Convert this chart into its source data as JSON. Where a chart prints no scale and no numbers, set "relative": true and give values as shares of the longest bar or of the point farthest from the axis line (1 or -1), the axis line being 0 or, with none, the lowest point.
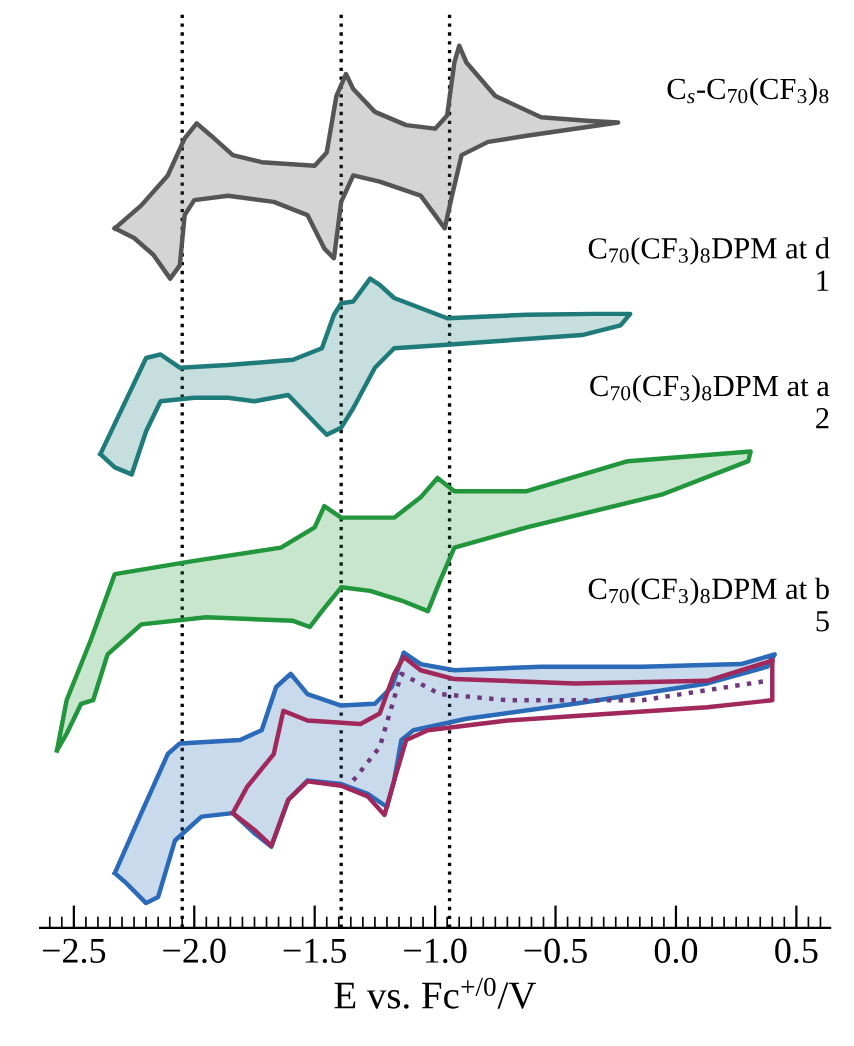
{
  "chart_data": {
    "type": "line",
    "relative": true,
    "xlabel": "E vs. Fc$^{+/0}$/V",
    "xlim": [
      -2.64,
      0.64
    ],
    "xticks": [
      {
        "value": -2.5,
        "label": "−2.5"
      },
      {
        "value": -2.0,
        "label": "−2.0"
      },
      {
        "value": -1.5,
        "label": "−1.5"
      },
      {
        "value": -1.0,
        "label": "−1.0"
      },
      {
        "value": -0.5,
        "label": "−0.5"
      },
      {
        "value": 0.0,
        "label": "0.0"
      },
      {
        "value": 0.5,
        "label": "0.5"
      }
    ],
    "tick_labels": "x",
    "grid": false,
    "legend": false,
    "ref_lines": [
      {
        "axis": "x",
        "value": -2.05,
        "color": "#000000",
        "line_style": "dotted"
      },
      {
        "axis": "x",
        "value": -1.39,
        "color": "#000000",
        "line_style": "dotted"
      },
      {
        "axis": "x",
        "value": -0.94,
        "color": "#000000",
        "line_style": "dotted"
      }
    ],
    "series": [
      {
        "name": "C$_{s}$-C$_{70}$(CF$_{3}$)$_{8}$",
        "type": "area",
        "color": "#555555",
        "x": [
          -2.33,
          -2.22,
          -2.11,
          -2.04,
          -1.99,
          -1.93,
          -1.84,
          -1.72,
          -1.5,
          -1.45,
          -1.41,
          -1.37,
          -1.34,
          -1.25,
          -1.12,
          -1.0,
          -0.95,
          -0.92,
          -0.9,
          -0.87,
          -0.75,
          -0.56,
          -0.37,
          -0.24,
          -0.39,
          -0.62,
          -0.78,
          -0.89,
          -0.93,
          -0.96,
          -1.0,
          -1.06,
          -1.23,
          -1.34,
          -1.39,
          -1.42,
          -1.46,
          -1.53,
          -1.67,
          -1.86,
          -2.0,
          -2.04,
          -2.06,
          -2.1,
          -2.17,
          -2.25,
          -2.33
        ],
        "values": [
          0.793,
          0.819,
          0.853,
          0.895,
          0.912,
          0.898,
          0.876,
          0.868,
          0.864,
          0.879,
          0.943,
          0.968,
          0.951,
          0.925,
          0.91,
          0.906,
          0.921,
          0.981,
          1.0,
          0.981,
          0.943,
          0.919,
          0.915,
          0.913,
          0.907,
          0.898,
          0.891,
          0.876,
          0.83,
          0.793,
          0.808,
          0.83,
          0.846,
          0.853,
          0.823,
          0.759,
          0.77,
          0.808,
          0.823,
          0.83,
          0.825,
          0.808,
          0.751,
          0.736,
          0.763,
          0.782,
          0.793
        ]
      },
      {
        "name": "C$_{70}$(CF$_{3}$)$_{8}$DPM at d\n1",
        "type": "area",
        "color": "#1f7a7a",
        "x": [
          -2.39,
          -2.2,
          -2.14,
          -2.06,
          -1.86,
          -1.59,
          -1.47,
          -1.42,
          -1.39,
          -1.34,
          -1.27,
          -1.23,
          -1.17,
          -0.95,
          -0.62,
          -0.34,
          -0.19,
          -0.23,
          -0.39,
          -0.75,
          -0.95,
          -1.17,
          -1.25,
          -1.34,
          -1.39,
          -1.45,
          -1.49,
          -1.61,
          -1.75,
          -1.86,
          -2.0,
          -2.14,
          -2.2,
          -2.26,
          -2.33,
          -2.39
        ],
        "values": [
          0.537,
          0.646,
          0.65,
          0.635,
          0.638,
          0.644,
          0.657,
          0.695,
          0.708,
          0.71,
          0.736,
          0.729,
          0.714,
          0.691,
          0.695,
          0.696,
          0.696,
          0.683,
          0.672,
          0.665,
          0.661,
          0.657,
          0.635,
          0.589,
          0.567,
          0.559,
          0.57,
          0.604,
          0.597,
          0.601,
          0.601,
          0.597,
          0.563,
          0.514,
          0.522,
          0.537
        ]
      },
      {
        "name": "C$_{70}$(CF$_{3}$)$_{8}$DPM at a\n2",
        "type": "area",
        "color": "#22963c",
        "x": [
          -2.57,
          -2.53,
          -2.43,
          -2.33,
          -2.0,
          -1.64,
          -1.5,
          -1.46,
          -1.39,
          -1.17,
          -1.06,
          -0.99,
          -0.92,
          -0.62,
          -0.2,
          0.31,
          0.3,
          -0.06,
          -0.62,
          -0.92,
          -0.98,
          -1.03,
          -1.14,
          -1.27,
          -1.39,
          -1.47,
          -1.52,
          -1.59,
          -1.95,
          -2.22,
          -2.36,
          -2.42,
          -2.47,
          -2.53,
          -2.57
        ],
        "values": [
          0.201,
          0.258,
          0.326,
          0.401,
          0.416,
          0.431,
          0.454,
          0.478,
          0.465,
          0.465,
          0.488,
          0.51,
          0.495,
          0.495,
          0.529,
          0.54,
          0.529,
          0.491,
          0.454,
          0.431,
          0.393,
          0.359,
          0.371,
          0.382,
          0.386,
          0.359,
          0.341,
          0.348,
          0.352,
          0.344,
          0.31,
          0.258,
          0.254,
          0.22,
          0.201
        ]
      },
      {
        "name": "C$_{70}$(CF$_{3}$)$_{8}$DPM at b\n5",
        "type": "area",
        "color": "#2a6ab8",
        "x": [
          -2.33,
          -2.22,
          -2.11,
          -2.06,
          -1.81,
          -1.72,
          -1.66,
          -1.6,
          -1.53,
          -1.39,
          -1.25,
          -1.18,
          -1.13,
          -1.06,
          -0.92,
          -0.56,
          -0.14,
          0.27,
          0.41,
          0.38,
          0.13,
          -0.42,
          -0.87,
          -1.09,
          -1.14,
          -1.17,
          -1.2,
          -1.28,
          -1.39,
          -1.53,
          -1.61,
          -1.68,
          -1.75,
          -1.84,
          -1.97,
          -2.08,
          -2.15,
          -2.2,
          -2.28,
          -2.33
        ],
        "values": [
          0.062,
          0.13,
          0.197,
          0.209,
          0.213,
          0.224,
          0.273,
          0.288,
          0.265,
          0.252,
          0.254,
          0.273,
          0.312,
          0.299,
          0.292,
          0.296,
          0.296,
          0.299,
          0.31,
          0.296,
          0.277,
          0.254,
          0.237,
          0.224,
          0.213,
          0.167,
          0.137,
          0.152,
          0.163,
          0.167,
          0.145,
          0.092,
          0.107,
          0.13,
          0.126,
          0.099,
          0.035,
          0.028,
          0.05,
          0.062
        ]
      },
      {
        "color": "#a0285a",
        "x": [
          -1.84,
          -1.78,
          -1.67,
          -1.63,
          -1.53,
          -1.31,
          -1.23,
          -1.17,
          -1.13,
          -1.06,
          -0.92,
          -0.42,
          0.13,
          0.4
        ],
        "values": [
          0.13,
          0.16,
          0.197,
          0.246,
          0.235,
          0.231,
          0.243,
          0.288,
          0.307,
          0.292,
          0.282,
          0.277,
          0.28,
          0.303
        ]
      },
      {
        "color": "#a0285a",
        "x": [
          0.4,
          0.4,
          0.13,
          -0.2,
          -0.7,
          -1.03,
          -1.12,
          -1.17,
          -1.21,
          -1.28,
          -1.39,
          -1.53,
          -1.61,
          -1.68,
          -1.75,
          -1.84
        ],
        "values": [
          0.303,
          0.258,
          0.25,
          0.244,
          0.235,
          0.224,
          0.213,
          0.167,
          0.128,
          0.149,
          0.161,
          0.166,
          0.145,
          0.093,
          0.111,
          0.13
        ]
      },
      {
        "color": "#6e3a7a",
        "line_style": "dotted",
        "x": [
          -1.34,
          -1.23,
          -1.14,
          -0.98,
          -0.7,
          -0.14,
          0.38
        ],
        "values": [
          0.167,
          0.205,
          0.288,
          0.265,
          0.258,
          0.258,
          0.28
        ]
      }
    ]
  }
}
